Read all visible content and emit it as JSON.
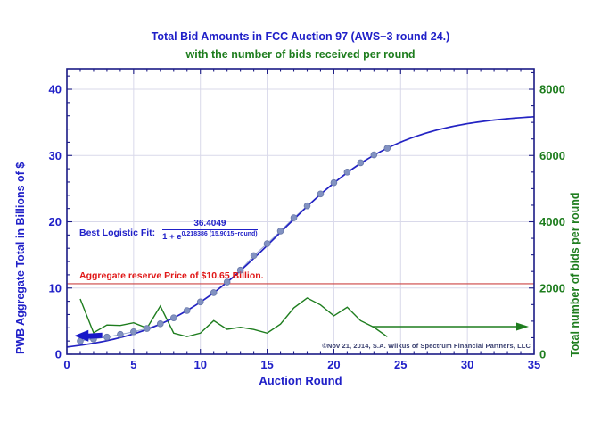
{
  "titles": {
    "line1": "Total Bid Amounts in FCC Auction 97 (AWS−3 round 24.)",
    "line2": "with the number of bids received per round"
  },
  "colors": {
    "title_blue": "#2020c8",
    "green": "#1e7d1e",
    "red_text": "#e01818",
    "red_line": "#cc4545",
    "curve_blue": "#2323c3",
    "frame_navy": "#1c1c86",
    "dot_fill": "#8292c2",
    "dot_stroke": "#6a7aaa",
    "dot_connector": "#9aaad2",
    "grid": "#d9d9ea",
    "copyright_blue": "#3a4070",
    "arrow_blue": "#1818c8"
  },
  "chart_data": {
    "type": "line",
    "title": "Total Bid Amounts in FCC Auction 97 (AWS-3 round 24.) with the number of bids received per round",
    "xlabel": "Auction Round",
    "ylabel_left": "PWB Aggregate Total in Billions of $",
    "ylabel_right": "Total number of bids per round",
    "x_axis": {
      "min": 0,
      "max": 35,
      "ticks": [
        0,
        5,
        10,
        15,
        20,
        25,
        30,
        35
      ],
      "minor_step": 1
    },
    "y_left_axis": {
      "min": 0,
      "max": 43.1,
      "ticks": [
        0,
        10,
        20,
        30,
        40
      ],
      "minor_step": 2
    },
    "y_right_axis": {
      "min": 0,
      "max": 8620,
      "ticks": [
        0,
        2000,
        4000,
        6000,
        8000
      ],
      "minor_step": 500
    },
    "grid": {
      "x_lines": [
        5,
        10,
        15,
        20,
        25,
        30
      ],
      "y_left_lines": [
        10,
        20,
        30,
        40
      ]
    },
    "rounds": [
      1,
      2,
      3,
      4,
      5,
      6,
      7,
      8,
      9,
      10,
      11,
      12,
      13,
      14,
      15,
      16,
      17,
      18,
      19,
      20,
      21,
      22,
      23,
      24
    ],
    "series": [
      {
        "name": "PWB aggregate total (billions of $)",
        "axis": "left",
        "style": "dots",
        "values": [
          2.0,
          2.3,
          2.6,
          3.0,
          3.4,
          3.9,
          4.6,
          5.5,
          6.6,
          7.9,
          9.3,
          10.9,
          12.7,
          14.9,
          16.7,
          18.6,
          20.6,
          22.4,
          24.2,
          25.9,
          27.5,
          28.9,
          30.1,
          31.1
        ]
      },
      {
        "name": "Best logistic fit",
        "axis": "left",
        "style": "curve",
        "logistic": {
          "L": 36.4049,
          "k": 0.218386,
          "x0": 15.9015
        },
        "x_range": [
          0,
          35
        ]
      },
      {
        "name": "Number of bids per round",
        "axis": "right",
        "style": "line",
        "values": [
          1670,
          650,
          885,
          870,
          950,
          790,
          1455,
          640,
          535,
          640,
          1015,
          755,
          815,
          750,
          640,
          910,
          1400,
          1700,
          1490,
          1160,
          1420,
          1015,
          815,
          530
        ]
      }
    ],
    "reserve_line": {
      "value_billions": 10.65
    },
    "legend_position": "none"
  },
  "annotations": {
    "fit_label": "Best Logistic Fit:",
    "fit_numerator": "36.4049",
    "fit_denominator_base": "1 + e",
    "fit_exponent": "0.218386 (15.9015−round)",
    "reserve_text": "Aggregate reserve Price of $10.65 Billion.",
    "copyright": "©Nov 21, 2014, S.A. Wilkus of Spectrum Financial Partners, LLC",
    "green_arrow": {
      "bids_value": 835,
      "from_round": 22.9,
      "to_round": 34.6
    },
    "blue_arrow": {
      "billions_value": 2.8,
      "tip_round": 0.55,
      "tail_round": 2.65
    }
  }
}
